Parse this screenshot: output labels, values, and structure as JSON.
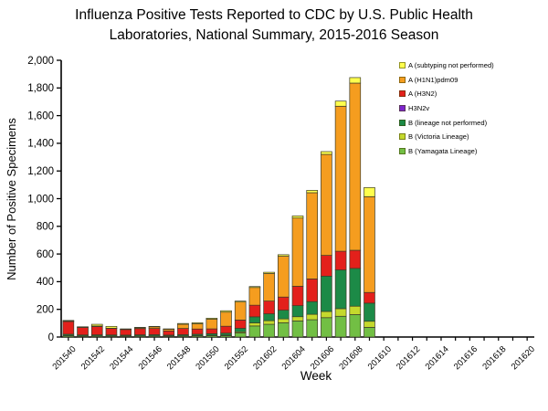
{
  "title": {
    "line1": "Influenza Positive Tests Reported to CDC by U.S. Public Health",
    "line2": "Laboratories, National Summary, 2015-2016 Season"
  },
  "chart_data": {
    "type": "bar",
    "stacked": true,
    "grid": "off",
    "legend_position": "top-right-inside",
    "xlabel": "Week",
    "ylabel": "Number of Positive Specimens",
    "ylim": [
      0,
      2000
    ],
    "ytick_step": 200,
    "yticks": [
      "0",
      "200",
      "400",
      "600",
      "800",
      "1,000",
      "1,200",
      "1,400",
      "1,600",
      "1,800",
      "2,000"
    ],
    "xticks_labeled": [
      "201540",
      "201542",
      "201544",
      "201546",
      "201548",
      "201550",
      "201552",
      "201602",
      "201604",
      "201606",
      "201608",
      "201610",
      "201612",
      "201614",
      "201616",
      "201618",
      "201620"
    ],
    "categories": [
      "201540",
      "201541",
      "201542",
      "201543",
      "201544",
      "201545",
      "201546",
      "201547",
      "201548",
      "201549",
      "201550",
      "201551",
      "201552",
      "201601",
      "201602",
      "201603",
      "201604",
      "201605",
      "201606",
      "201607",
      "201608",
      "201609",
      "201610",
      "201611",
      "201612",
      "201613",
      "201614",
      "201615",
      "201616",
      "201617",
      "201618",
      "201619",
      "201620"
    ],
    "stack_order": "last series listed is drawn at the bottom of the stack",
    "series": [
      {
        "name": "A (subtyping not performed)",
        "color": "#ffff4d",
        "values": [
          3,
          2,
          12,
          13,
          2,
          3,
          3,
          3,
          6,
          7,
          7,
          10,
          7,
          7,
          9,
          11,
          15,
          17,
          20,
          37,
          40,
          66,
          0,
          0,
          0,
          0,
          0,
          0,
          0,
          0,
          0,
          0,
          0
        ]
      },
      {
        "name": "A (H1N1)pdm09",
        "color": "#f59d1f",
        "values": [
          5,
          3,
          4,
          2,
          3,
          6,
          12,
          12,
          30,
          38,
          70,
          102,
          130,
          128,
          199,
          295,
          493,
          623,
          730,
          1048,
          1208,
          692,
          0,
          0,
          0,
          0,
          0,
          0,
          0,
          0,
          0,
          0,
          0
        ]
      },
      {
        "name": "A (H3N2)",
        "color": "#e3201b",
        "values": [
          92,
          54,
          60,
          47,
          40,
          45,
          45,
          30,
          45,
          38,
          35,
          50,
          60,
          84,
          92,
          95,
          140,
          164,
          150,
          135,
          131,
          77,
          0,
          0,
          0,
          0,
          0,
          0,
          0,
          0,
          0,
          0,
          0
        ]
      },
      {
        "name": "H3N2v",
        "color": "#7d26cd",
        "values": [
          0,
          0,
          0,
          0,
          0,
          0,
          0,
          0,
          0,
          0,
          0,
          0,
          0,
          0,
          0,
          0,
          0,
          0,
          0,
          0,
          0,
          0,
          0,
          0,
          0,
          0,
          0,
          0,
          0,
          0,
          0,
          0,
          0
        ]
      },
      {
        "name": "B (lineage not performed)",
        "color": "#1c8a47",
        "values": [
          10,
          8,
          8,
          8,
          7,
          8,
          9,
          7,
          9,
          10,
          12,
          14,
          25,
          44,
          50,
          63,
          80,
          92,
          255,
          280,
          273,
          131,
          0,
          0,
          0,
          0,
          0,
          0,
          0,
          0,
          0,
          0,
          0
        ]
      },
      {
        "name": "B (Victoria Lineage)",
        "color": "#c5d92d",
        "values": [
          2,
          2,
          2,
          2,
          2,
          2,
          2,
          2,
          2,
          2,
          2,
          4,
          8,
          22,
          26,
          28,
          31,
          39,
          45,
          55,
          61,
          44,
          0,
          0,
          0,
          0,
          0,
          0,
          0,
          0,
          0,
          0,
          0
        ]
      },
      {
        "name": "B (Yamagata Lineage)",
        "color": "#72bf44",
        "values": [
          8,
          5,
          6,
          5,
          5,
          6,
          6,
          5,
          6,
          8,
          10,
          10,
          30,
          80,
          92,
          103,
          116,
          125,
          140,
          150,
          162,
          70,
          0,
          0,
          0,
          0,
          0,
          0,
          0,
          0,
          0,
          0,
          0
        ]
      }
    ]
  }
}
